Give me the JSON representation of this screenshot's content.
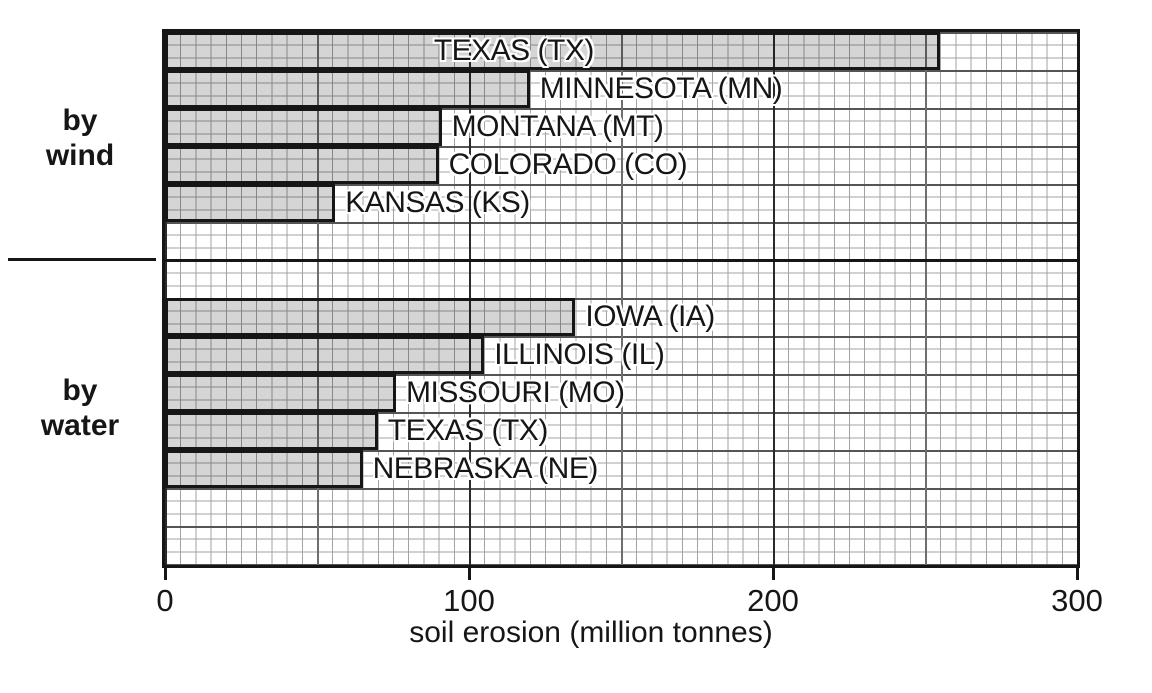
{
  "chart_data": {
    "type": "bar",
    "orientation": "horizontal",
    "title": "",
    "xlabel": "soil erosion (million tonnes)",
    "xlim": [
      0,
      300
    ],
    "x_ticks": [
      "0",
      "100",
      "200",
      "300"
    ],
    "x_tick_values": [
      0,
      100,
      200,
      300
    ],
    "grid": {
      "shown": true,
      "minor_unit": 5,
      "mid_unit": 50,
      "major_unit": 100
    },
    "bar_fill": "#d5d5d5",
    "bar_border": "#161616",
    "groups": [
      {
        "name": "by wind",
        "side_label": [
          "by",
          "wind"
        ],
        "start_row": 0,
        "bars": [
          {
            "label": "TEXAS (TX)",
            "value": 255,
            "label_position": "inside"
          },
          {
            "label": "MINNESOTA (MN)",
            "value": 120,
            "label_position": "outside"
          },
          {
            "label": "MONTANA (MT)",
            "value": 91,
            "label_position": "outside"
          },
          {
            "label": "COLORADO (CO)",
            "value": 90,
            "label_position": "outside"
          },
          {
            "label": "KANSAS (KS)",
            "value": 56,
            "label_position": "outside"
          }
        ]
      },
      {
        "name": "by water",
        "side_label": [
          "by",
          "water"
        ],
        "start_row": 7,
        "bars": [
          {
            "label": "IOWA (IA)",
            "value": 135,
            "label_position": "outside"
          },
          {
            "label": "ILLINOIS (IL)",
            "value": 105,
            "label_position": "outside"
          },
          {
            "label": "MISSOURI (MO)",
            "value": 76,
            "label_position": "outside"
          },
          {
            "label": "TEXAS (TX)",
            "value": 70,
            "label_position": "outside"
          },
          {
            "label": "NEBRASKA (NE)",
            "value": 65,
            "label_position": "outside"
          }
        ]
      }
    ]
  }
}
